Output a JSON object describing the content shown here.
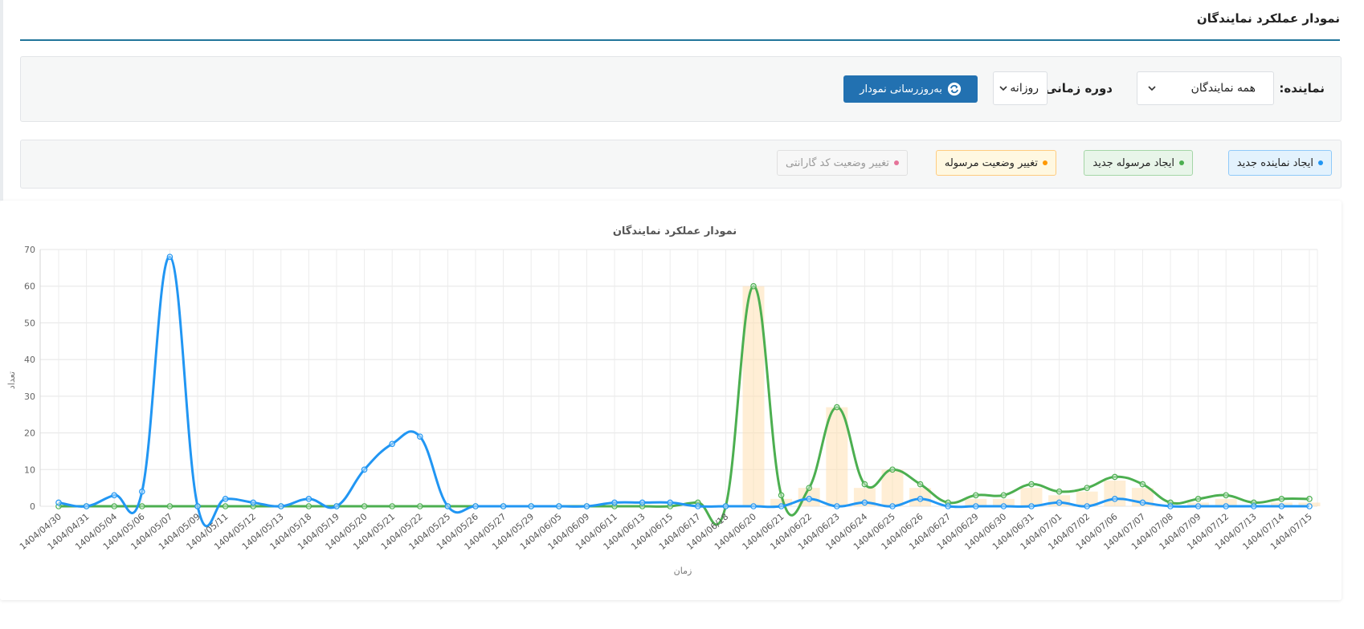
{
  "page": {
    "title": "نمودار عملکرد نمایندگان"
  },
  "filters": {
    "agent_label": "نماینده:",
    "agent_value": "همه نمایندگان",
    "period_label": "دوره زمانی:",
    "period_value": "روزانه",
    "refresh_label": "به‌روزرسانی نمودار"
  },
  "legend_toggles": [
    {
      "label": "ایجاد نماینده جدید",
      "color": "#2196f3",
      "bg": "#e3f2fd",
      "border": "#90caf9",
      "text": "#222"
    },
    {
      "label": "ایجاد مرسوله جدید",
      "color": "#4caf50",
      "bg": "#e8f5e9",
      "border": "#a5d6a7",
      "text": "#222"
    },
    {
      "label": "تغییر وضعیت مرسوله",
      "color": "#ff9800",
      "bg": "#fff8e1",
      "border": "#ffcc80",
      "text": "#222"
    },
    {
      "label": "تغییر وضعیت کد گارانتی",
      "color": "#e57399",
      "bg": "#f7f7f7",
      "border": "#e0e0e0",
      "text": "#999"
    }
  ],
  "icons": {
    "refresh": "refresh-icon",
    "dropdown": "chevron-down-icon"
  },
  "chart_data": {
    "type": "line",
    "title": "نمودار عملکرد نمایندگان",
    "xlabel": "زمان",
    "ylabel": "تعداد",
    "ylim": [
      0,
      70
    ],
    "yticks": [
      0,
      10,
      20,
      30,
      40,
      50,
      60,
      70
    ],
    "grid": true,
    "categories": [
      "1404/04/30",
      "1404/04/31",
      "1404/05/04",
      "1404/05/06",
      "1404/05/07",
      "1404/05/09",
      "1404/05/11",
      "1404/05/12",
      "1404/05/13",
      "1404/05/18",
      "1404/05/19",
      "1404/05/20",
      "1404/05/21",
      "1404/05/22",
      "1404/05/25",
      "1404/05/26",
      "1404/05/27",
      "1404/05/29",
      "1404/06/05",
      "1404/06/09",
      "1404/06/11",
      "1404/06/13",
      "1404/06/15",
      "1404/06/17",
      "1404/06/18",
      "1404/06/20",
      "1404/06/21",
      "1404/06/22",
      "1404/06/23",
      "1404/06/24",
      "1404/06/25",
      "1404/06/26",
      "1404/06/27",
      "1404/06/29",
      "1404/06/30",
      "1404/06/31",
      "1404/07/01",
      "1404/07/02",
      "1404/07/06",
      "1404/07/07",
      "1404/07/08",
      "1404/07/09",
      "1404/07/12",
      "1404/07/13",
      "1404/07/14",
      "1404/07/15"
    ],
    "series": [
      {
        "name": "ایجاد نماینده جدید",
        "type": "line",
        "color": "#2196f3",
        "values": [
          1,
          0,
          3,
          4,
          68,
          0,
          2,
          1,
          0,
          2,
          0,
          10,
          17,
          19,
          0,
          0,
          0,
          0,
          0,
          0,
          1,
          1,
          1,
          0,
          0,
          0,
          0,
          2,
          0,
          1,
          0,
          2,
          0,
          0,
          0,
          0,
          1,
          0,
          2,
          1,
          0,
          0,
          0,
          0,
          0,
          0
        ]
      },
      {
        "name": "ایجاد مرسوله جدید",
        "type": "line",
        "color": "#4caf50",
        "values": [
          0,
          0,
          0,
          0,
          0,
          0,
          0,
          0,
          0,
          0,
          0,
          0,
          0,
          0,
          0,
          0,
          0,
          0,
          0,
          0,
          0,
          0,
          0,
          1,
          0,
          60,
          3,
          5,
          27,
          6,
          10,
          6,
          1,
          3,
          3,
          6,
          4,
          5,
          8,
          6,
          1,
          2,
          3,
          1,
          2,
          2
        ]
      },
      {
        "name": "تغییر وضعیت مرسوله",
        "type": "bar",
        "color": "#ffe0b2",
        "values": [
          0,
          0,
          0,
          0,
          0,
          0,
          0,
          0,
          0,
          0,
          0,
          0,
          0,
          0,
          0,
          0,
          0,
          0,
          0,
          0,
          0,
          0,
          0,
          0,
          0,
          60,
          2,
          5,
          27,
          5,
          10,
          5,
          0,
          2,
          2,
          5,
          3,
          4,
          7,
          5,
          0,
          1,
          2,
          0,
          1,
          1
        ]
      }
    ]
  }
}
